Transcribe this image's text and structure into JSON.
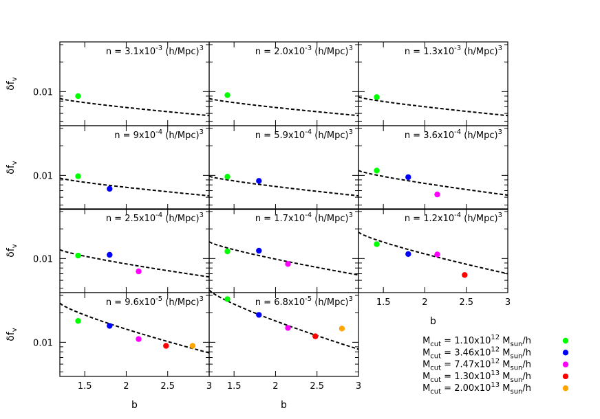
{
  "chart_data": {
    "type": "scatter",
    "x_label": "b",
    "y_label": "δf_v",
    "y_label_main": "δf",
    "y_label_sub": "v",
    "x_ticks": [
      {
        "value": 1.5,
        "label": "1.5"
      },
      {
        "value": 2,
        "label": "2"
      },
      {
        "value": 2.5,
        "label": "2.5"
      },
      {
        "value": 3,
        "label": "3"
      }
    ],
    "y_ticks": [
      {
        "value": 0.01,
        "label": "0.01"
      }
    ],
    "xlim": [
      1.2,
      3.0
    ],
    "ylim_log": [
      0.0045,
      0.032
    ],
    "legend": {
      "placement": "bottom-right",
      "entries": [
        {
          "prefix": "M",
          "sub": "cut",
          "mid": " = 1.10x10",
          "sup": "12",
          "unit": " M",
          "unit_sub": "sun",
          "suffix": "/h",
          "color": "#00ff00",
          "text": "M_cut = 1.10x10^12 M_sun/h"
        },
        {
          "prefix": "M",
          "sub": "cut",
          "mid": " = 3.46x10",
          "sup": "12",
          "unit": " M",
          "unit_sub": "sun",
          "suffix": "/h",
          "color": "#0000ff",
          "text": "M_cut = 3.46x10^12 M_sun/h"
        },
        {
          "prefix": "M",
          "sub": "cut",
          "mid": " = 7.47x10",
          "sup": "12",
          "unit": " M",
          "unit_sub": "sun",
          "suffix": "/h",
          "color": "#ff00ff",
          "text": "M_cut = 7.47x10^12 M_sun/h"
        },
        {
          "prefix": "M",
          "sub": "cut",
          "mid": " = 1.30x10",
          "sup": "13",
          "unit": " M",
          "unit_sub": "sun",
          "suffix": "/h",
          "color": "#ff0000",
          "text": "M_cut = 1.30x10^13 M_sun/h"
        },
        {
          "prefix": "M",
          "sub": "cut",
          "mid": " = 2.00x10",
          "sup": "13",
          "unit": " M",
          "unit_sub": "sun",
          "suffix": "/h",
          "color": "#ffa500",
          "text": "M_cut = 2.00x10^13 M_sun/h"
        }
      ]
    },
    "panels": [
      {
        "label_base": "n = 3.1x10",
        "label_exp": "-3",
        "label_unit": " (h/Mpc)",
        "label_unit_exp": "3",
        "label": "n = 3.1x10^-3 (h/Mpc)^3",
        "points": [
          {
            "b": 1.42,
            "value": 0.009,
            "series": 0
          }
        ],
        "fit": {
          "a": 0.0085,
          "b": 0.0057
        }
      },
      {
        "label_base": "n = 2.0x10",
        "label_exp": "-3",
        "label_unit": " (h/Mpc)",
        "label_unit_exp": "3",
        "label": "n = 2.0x10^-3 (h/Mpc)^3",
        "points": [
          {
            "b": 1.42,
            "value": 0.0092,
            "series": 0
          }
        ],
        "fit": {
          "a": 0.0085,
          "b": 0.0057
        }
      },
      {
        "label_base": "n = 1.3x10",
        "label_exp": "-3",
        "label_unit": " (h/Mpc)",
        "label_unit_exp": "3",
        "label": "n = 1.3x10^-3 (h/Mpc)^3",
        "points": [
          {
            "b": 1.42,
            "value": 0.0088,
            "series": 0
          }
        ],
        "fit": {
          "a": 0.0088,
          "b": 0.0057
        }
      },
      {
        "label_base": "n = 9x10",
        "label_exp": "-4",
        "label_unit": " (h/Mpc)",
        "label_unit_exp": "3",
        "label": "n = 9x10^-4 (h/Mpc)^3",
        "points": [
          {
            "b": 1.42,
            "value": 0.0098,
            "series": 0
          },
          {
            "b": 1.8,
            "value": 0.0073,
            "series": 1
          }
        ],
        "fit": {
          "a": 0.0094,
          "b": 0.0062
        }
      },
      {
        "label_base": "n = 5.9x10",
        "label_exp": "-4",
        "label_unit": " (h/Mpc)",
        "label_unit_exp": "3",
        "label": "n = 5.9x10^-4 (h/Mpc)^3",
        "points": [
          {
            "b": 1.42,
            "value": 0.0097,
            "series": 0
          },
          {
            "b": 1.8,
            "value": 0.0088,
            "series": 1
          }
        ],
        "fit": {
          "a": 0.0098,
          "b": 0.0062
        }
      },
      {
        "label_base": "n = 3.6x10",
        "label_exp": "-4",
        "label_unit": " (h/Mpc)",
        "label_unit_exp": "3",
        "label": "n = 3.6x10^-4 (h/Mpc)^3",
        "points": [
          {
            "b": 1.42,
            "value": 0.0112,
            "series": 0
          },
          {
            "b": 1.8,
            "value": 0.0096,
            "series": 1
          },
          {
            "b": 2.15,
            "value": 0.0064,
            "series": 2
          }
        ],
        "fit": {
          "a": 0.0112,
          "b": 0.0063
        }
      },
      {
        "label_base": "n = 2.5x10",
        "label_exp": "-4",
        "label_unit": " (h/Mpc)",
        "label_unit_exp": "3",
        "label": "n = 2.5x10^-4 (h/Mpc)^3",
        "points": [
          {
            "b": 1.42,
            "value": 0.0107,
            "series": 0
          },
          {
            "b": 1.8,
            "value": 0.0109,
            "series": 1
          },
          {
            "b": 2.15,
            "value": 0.0074,
            "series": 2
          }
        ],
        "fit": {
          "a": 0.0123,
          "b": 0.0065
        }
      },
      {
        "label_base": "n = 1.7x10",
        "label_exp": "-4",
        "label_unit": " (h/Mpc)",
        "label_unit_exp": "3",
        "label": "n = 1.7x10^-4 (h/Mpc)^3",
        "points": [
          {
            "b": 1.42,
            "value": 0.0118,
            "series": 0
          },
          {
            "b": 1.8,
            "value": 0.012,
            "series": 1
          },
          {
            "b": 2.15,
            "value": 0.0088,
            "series": 2
          }
        ],
        "fit": {
          "a": 0.0148,
          "b": 0.0068
        }
      },
      {
        "label_base": "n = 1.2x10",
        "label_exp": "-4",
        "label_unit": " (h/Mpc)",
        "label_unit_exp": "3",
        "label": "n = 1.2x10^-4 (h/Mpc)^3",
        "points": [
          {
            "b": 1.42,
            "value": 0.014,
            "series": 0
          },
          {
            "b": 1.8,
            "value": 0.0111,
            "series": 1
          },
          {
            "b": 2.15,
            "value": 0.011,
            "series": 2
          },
          {
            "b": 2.48,
            "value": 0.0068,
            "series": 3
          }
        ],
        "fit": {
          "a": 0.0185,
          "b": 0.007
        }
      },
      {
        "label_base": "n = 9.6x10",
        "label_exp": "-5",
        "label_unit": " (h/Mpc)",
        "label_unit_exp": "3",
        "label": "n = 9.6x10^-5 (h/Mpc)^3",
        "points": [
          {
            "b": 1.42,
            "value": 0.0165,
            "series": 0
          },
          {
            "b": 1.8,
            "value": 0.0147,
            "series": 1
          },
          {
            "b": 2.15,
            "value": 0.0108,
            "series": 2
          },
          {
            "b": 2.48,
            "value": 0.0092,
            "series": 3
          },
          {
            "b": 2.8,
            "value": 0.0092,
            "series": 4
          }
        ],
        "fit": {
          "a": 0.025,
          "b": 0.0078
        }
      },
      {
        "label_base": "n = 6.8x10",
        "label_exp": "-5",
        "label_unit": " (h/Mpc)",
        "label_unit_exp": "3",
        "label": "n = 6.8x10^-5 (h/Mpc)^3",
        "points": [
          {
            "b": 1.42,
            "value": 0.0275,
            "series": 0
          },
          {
            "b": 1.8,
            "value": 0.019,
            "series": 1
          },
          {
            "b": 2.15,
            "value": 0.014,
            "series": 2
          },
          {
            "b": 2.48,
            "value": 0.0115,
            "series": 3
          },
          {
            "b": 2.8,
            "value": 0.0138,
            "series": 4
          }
        ],
        "fit": {
          "a": 0.034,
          "b": 0.0085
        }
      }
    ]
  }
}
